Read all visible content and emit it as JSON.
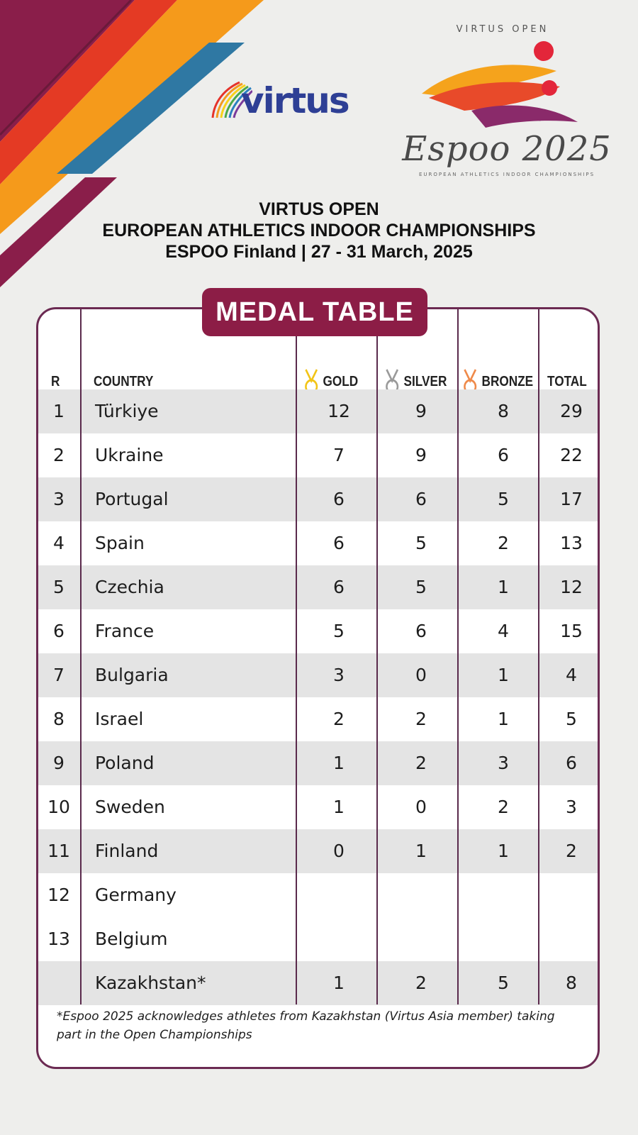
{
  "logos": {
    "virtus_word": "virtus",
    "espoo_top": "VIRTUS OPEN",
    "espoo_script": "Espoo 2025",
    "espoo_sub": "EUROPEAN ATHLETICS INDOOR CHAMPIONSHIPS"
  },
  "heading": {
    "line1": "VIRTUS OPEN",
    "line2": "EUROPEAN ATHLETICS INDOOR CHAMPIONSHIPS",
    "line3": "ESPOO Finland | 27 - 31 March, 2025"
  },
  "tag": "MEDAL TABLE",
  "columns": {
    "rank": "R",
    "country": "COUNTRY",
    "gold": "GOLD",
    "silver": "SILVER",
    "bronze": "BRONZE",
    "total": "TOTAL"
  },
  "colors": {
    "gold_medal": "#f2c417",
    "silver_medal": "#9a9a9a",
    "bronze_medal": "#ef8a4a",
    "accent": "#8c1d46",
    "border": "#6b2a52"
  },
  "rows": [
    {
      "rank": "1",
      "country": "Türkiye",
      "gold": "12",
      "silver": "9",
      "bronze": "8",
      "total": "29"
    },
    {
      "rank": "2",
      "country": "Ukraine",
      "gold": "7",
      "silver": "9",
      "bronze": "6",
      "total": "22"
    },
    {
      "rank": "3",
      "country": "Portugal",
      "gold": "6",
      "silver": "6",
      "bronze": "5",
      "total": "17"
    },
    {
      "rank": "4",
      "country": "Spain",
      "gold": "6",
      "silver": "5",
      "bronze": "2",
      "total": "13"
    },
    {
      "rank": "5",
      "country": "Czechia",
      "gold": "6",
      "silver": "5",
      "bronze": "1",
      "total": "12"
    },
    {
      "rank": "6",
      "country": "France",
      "gold": "5",
      "silver": "6",
      "bronze": "4",
      "total": "15"
    },
    {
      "rank": "7",
      "country": "Bulgaria",
      "gold": "3",
      "silver": "0",
      "bronze": "1",
      "total": "4"
    },
    {
      "rank": "8",
      "country": "Israel",
      "gold": "2",
      "silver": "2",
      "bronze": "1",
      "total": "5"
    },
    {
      "rank": "9",
      "country": "Poland",
      "gold": "1",
      "silver": "2",
      "bronze": "3",
      "total": "6"
    },
    {
      "rank": "10",
      "country": "Sweden",
      "gold": "1",
      "silver": "0",
      "bronze": "2",
      "total": "3"
    },
    {
      "rank": "11",
      "country": "Finland",
      "gold": "0",
      "silver": "1",
      "bronze": "1",
      "total": "2"
    },
    {
      "rank": "12",
      "country": "Germany",
      "gold": "",
      "silver": "",
      "bronze": "",
      "total": ""
    },
    {
      "rank": "13",
      "country": "Belgium",
      "gold": "",
      "silver": "",
      "bronze": "",
      "total": ""
    },
    {
      "rank": "",
      "country": "Kazakhstan*",
      "gold": "1",
      "silver": "2",
      "bronze": "5",
      "total": "8"
    }
  ],
  "footnote": "*Espoo 2025 acknowledges athletes from Kazakhstan (Virtus Asia member) taking part in the Open Championships"
}
